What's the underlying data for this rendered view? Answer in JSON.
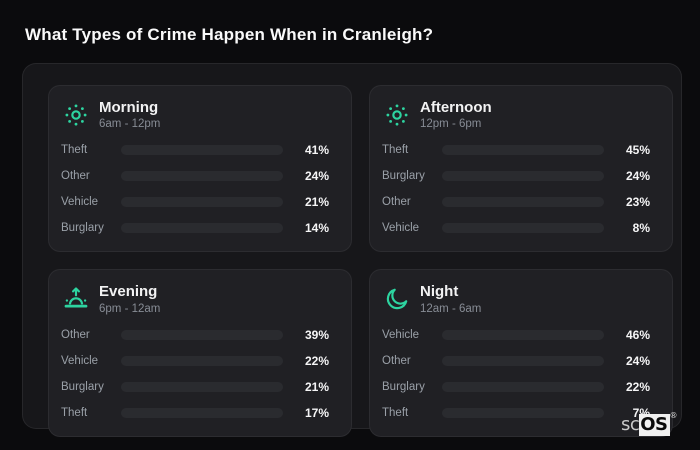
{
  "page": {
    "title": "What Types of Crime Happen When in Cranleigh?"
  },
  "theme": {
    "background": "#0b0b0d",
    "panel_background": "#17171a",
    "card_background": "#202024",
    "bar_track": "#2a2b2f",
    "icon_accent": "#2dd4a0",
    "title_color": "#fafafa",
    "label_color": "#9aa0a8",
    "percent_color": "#f5f5f6"
  },
  "category_colors": {
    "Theft": "#a458ec",
    "Other": "#64748b",
    "Vehicle": "#3b82f6",
    "Burglary": "#e8740f"
  },
  "chart_data": [
    {
      "type": "bar",
      "orientation": "horizontal",
      "title": "Morning",
      "subtitle": "6am - 12pm",
      "icon": "sun-icon",
      "unit": "%",
      "xlim": [
        0,
        100
      ],
      "categories": [
        "Theft",
        "Other",
        "Vehicle",
        "Burglary"
      ],
      "values": [
        41,
        24,
        21,
        14
      ]
    },
    {
      "type": "bar",
      "orientation": "horizontal",
      "title": "Afternoon",
      "subtitle": "12pm - 6pm",
      "icon": "sun-icon",
      "unit": "%",
      "xlim": [
        0,
        100
      ],
      "categories": [
        "Theft",
        "Burglary",
        "Other",
        "Vehicle"
      ],
      "values": [
        45,
        24,
        23,
        8
      ]
    },
    {
      "type": "bar",
      "orientation": "horizontal",
      "title": "Evening",
      "subtitle": "6pm - 12am",
      "icon": "sunrise-icon",
      "unit": "%",
      "xlim": [
        0,
        100
      ],
      "categories": [
        "Other",
        "Vehicle",
        "Burglary",
        "Theft"
      ],
      "values": [
        39,
        22,
        21,
        17
      ]
    },
    {
      "type": "bar",
      "orientation": "horizontal",
      "title": "Night",
      "subtitle": "12am - 6am",
      "icon": "moon-icon",
      "unit": "%",
      "xlim": [
        0,
        100
      ],
      "categories": [
        "Vehicle",
        "Other",
        "Burglary",
        "Theft"
      ],
      "values": [
        46,
        24,
        22,
        7
      ]
    }
  ],
  "watermark": {
    "prefix": "sc",
    "brand": "OS",
    "registered": "®"
  }
}
